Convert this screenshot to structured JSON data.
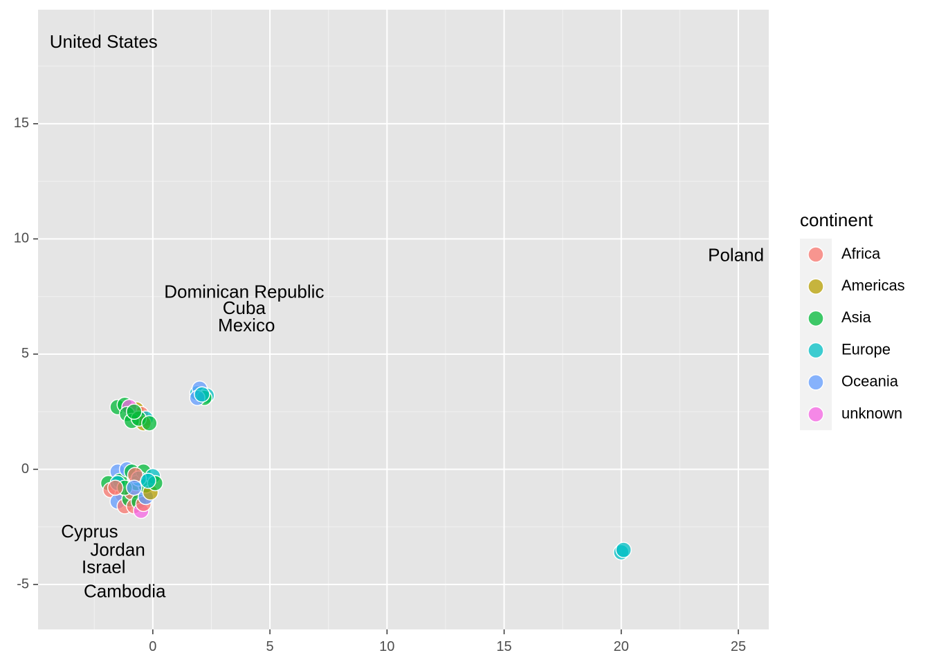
{
  "chart_data": {
    "type": "scatter",
    "xlim": [
      -4.9,
      26.3
    ],
    "ylim": [
      -6.95,
      19.95
    ],
    "x_ticks": [
      0,
      5,
      10,
      15,
      20,
      25
    ],
    "y_ticks": [
      -5,
      0,
      5,
      10,
      15
    ],
    "x_tick_labels": [
      "0",
      "5",
      "10",
      "15",
      "20",
      "25"
    ],
    "y_tick_labels": [
      "-5",
      "0",
      "5",
      "10",
      "15"
    ],
    "grid": true,
    "legend": {
      "title": "continent",
      "placement": "right",
      "entries": [
        {
          "label": "Africa",
          "color": "#F8766D"
        },
        {
          "label": "Americas",
          "color": "#B79F00"
        },
        {
          "label": "Asia",
          "color": "#00BA38"
        },
        {
          "label": "Europe",
          "color": "#00BFC4"
        },
        {
          "label": "Oceania",
          "color": "#619CFF"
        },
        {
          "label": "unknown",
          "color": "#F564E3"
        }
      ]
    },
    "annotations": [
      {
        "text": "United States",
        "x": -2.1,
        "y": 18.5
      },
      {
        "text": "Poland",
        "x": 24.9,
        "y": 9.25
      },
      {
        "text": "Dominican Republic",
        "x": 3.9,
        "y": 7.65
      },
      {
        "text": "Cuba",
        "x": 3.9,
        "y": 6.95
      },
      {
        "text": "Mexico",
        "x": 4.0,
        "y": 6.2
      },
      {
        "text": "Cyprus",
        "x": -2.7,
        "y": -2.75
      },
      {
        "text": "Jordan",
        "x": -1.5,
        "y": -3.55
      },
      {
        "text": "Israel",
        "x": -2.1,
        "y": -4.3
      },
      {
        "text": "Cambodia",
        "x": -1.2,
        "y": -5.35
      }
    ],
    "points": [
      {
        "continent": "Asia",
        "x": -1.5,
        "y": 2.7
      },
      {
        "continent": "Asia",
        "x": -1.2,
        "y": 2.8
      },
      {
        "continent": "Americas",
        "x": -0.7,
        "y": 2.6
      },
      {
        "continent": "Africa",
        "x": -0.5,
        "y": 2.4
      },
      {
        "continent": "unknown",
        "x": -1.0,
        "y": 2.7
      },
      {
        "continent": "Asia",
        "x": -1.1,
        "y": 2.4
      },
      {
        "continent": "Europe",
        "x": -0.3,
        "y": 2.2
      },
      {
        "continent": "Americas",
        "x": -0.4,
        "y": 2.0
      },
      {
        "continent": "Asia",
        "x": -0.9,
        "y": 2.1
      },
      {
        "continent": "Asia",
        "x": -0.6,
        "y": 2.2
      },
      {
        "continent": "Asia",
        "x": -0.15,
        "y": 2.0
      },
      {
        "continent": "Asia",
        "x": -0.8,
        "y": 2.5
      },
      {
        "continent": "Europe",
        "x": 1.9,
        "y": 3.3
      },
      {
        "continent": "Oceania",
        "x": 2.0,
        "y": 3.5
      },
      {
        "continent": "Europe",
        "x": 2.3,
        "y": 3.2
      },
      {
        "continent": "Asia",
        "x": 2.2,
        "y": 3.1
      },
      {
        "continent": "Oceania",
        "x": 1.9,
        "y": 3.1
      },
      {
        "continent": "Europe",
        "x": 2.1,
        "y": 3.25
      },
      {
        "continent": "Asia",
        "x": -1.9,
        "y": -0.6
      },
      {
        "continent": "Africa",
        "x": -1.8,
        "y": -0.9
      },
      {
        "continent": "Oceania",
        "x": -1.5,
        "y": -0.1
      },
      {
        "continent": "Asia",
        "x": -1.4,
        "y": -0.5
      },
      {
        "continent": "Africa",
        "x": -1.3,
        "y": -1.1
      },
      {
        "continent": "Oceania",
        "x": -1.5,
        "y": -1.4
      },
      {
        "continent": "Africa",
        "x": -1.2,
        "y": -1.6
      },
      {
        "continent": "Asia",
        "x": -1.0,
        "y": -1.3
      },
      {
        "continent": "Oceania",
        "x": -1.1,
        "y": 0.0
      },
      {
        "continent": "Asia",
        "x": -0.9,
        "y": -0.1
      },
      {
        "continent": "Africa",
        "x": -0.9,
        "y": -1.0
      },
      {
        "continent": "Africa",
        "x": -0.8,
        "y": -1.6
      },
      {
        "continent": "Asia",
        "x": -0.7,
        "y": -0.6
      },
      {
        "continent": "Asia",
        "x": -0.6,
        "y": -1.4
      },
      {
        "continent": "unknown",
        "x": -0.5,
        "y": -1.8
      },
      {
        "continent": "Africa",
        "x": -0.4,
        "y": -1.5
      },
      {
        "continent": "Asia",
        "x": -0.4,
        "y": -0.1
      },
      {
        "continent": "Oceania",
        "x": -0.3,
        "y": -1.2
      },
      {
        "continent": "Asia",
        "x": -0.3,
        "y": -0.7
      },
      {
        "continent": "Americas",
        "x": -0.1,
        "y": -1.0
      },
      {
        "continent": "Europe",
        "x": 0.0,
        "y": -0.3
      },
      {
        "continent": "Asia",
        "x": 0.1,
        "y": -0.6
      },
      {
        "continent": "Europe",
        "x": -0.6,
        "y": -0.4
      },
      {
        "continent": "Europe",
        "x": -1.5,
        "y": -0.6
      },
      {
        "continent": "Africa",
        "x": -0.75,
        "y": -0.25
      },
      {
        "continent": "Asia",
        "x": -1.2,
        "y": -0.8
      },
      {
        "continent": "Oceania",
        "x": -0.8,
        "y": -0.8
      },
      {
        "continent": "Africa",
        "x": -1.6,
        "y": -0.8
      },
      {
        "continent": "Europe",
        "x": -0.2,
        "y": -0.5
      },
      {
        "continent": "Europe",
        "x": 20.0,
        "y": -3.6
      },
      {
        "continent": "Europe",
        "x": 20.1,
        "y": -3.5
      }
    ]
  }
}
